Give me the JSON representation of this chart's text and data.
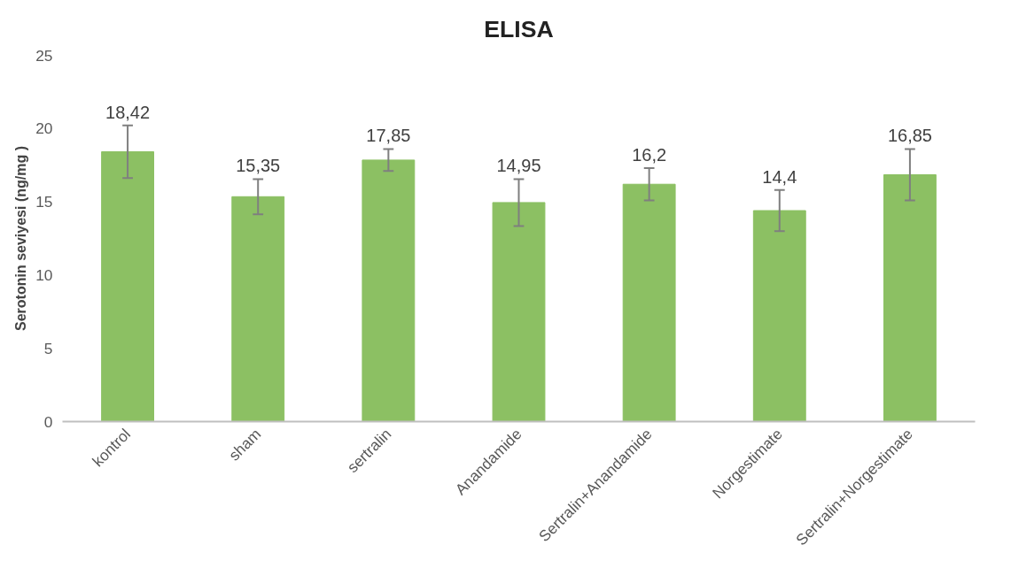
{
  "chart_data": {
    "type": "bar",
    "title": "ELISA",
    "ylabel": "Serotonin seviyesi (ng/mg )",
    "categories": [
      "kontrol",
      "sham",
      "sertralin",
      "Anandamide",
      "Sertralin+Anandamide",
      "Norgestimate",
      "Sertralin+Norgestimate"
    ],
    "values": [
      18.42,
      15.35,
      17.85,
      14.95,
      16.2,
      14.4,
      16.85
    ],
    "value_labels": [
      "18,42",
      "15,35",
      "17,85",
      "14,95",
      "16,2",
      "14,4",
      "16,85"
    ],
    "errors": [
      1.8,
      1.2,
      0.75,
      1.6,
      1.1,
      1.4,
      1.75
    ],
    "color": "#8cc063",
    "ylim": [
      0,
      25
    ],
    "yticks": [
      0,
      5,
      10,
      15,
      20,
      25
    ],
    "grid": false
  }
}
